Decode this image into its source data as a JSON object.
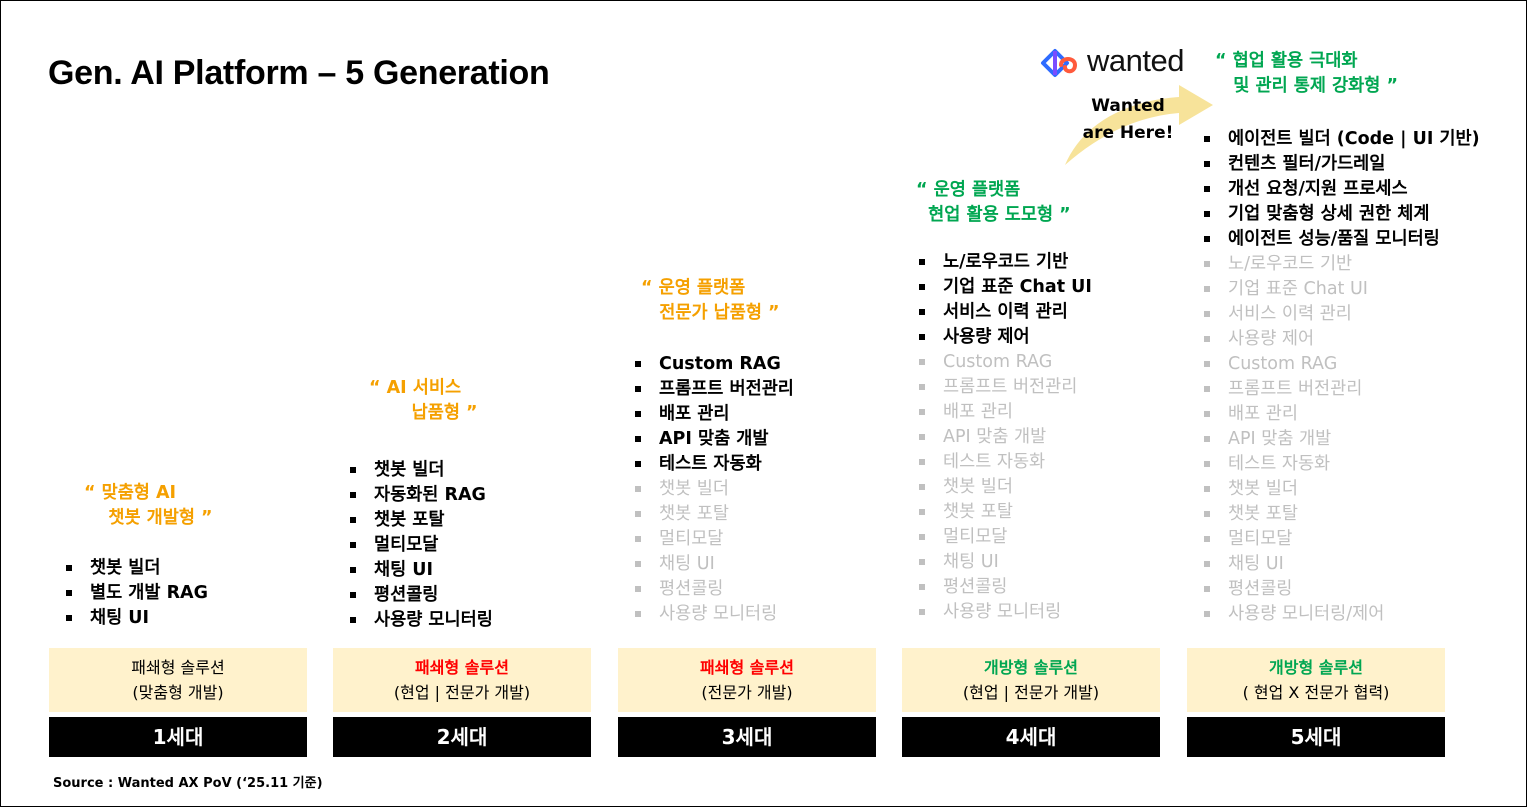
{
  "title": "Gen. AI Platform – 5 Generation",
  "logo": {
    "text": "wanted",
    "icon": "wanted-logo-icon"
  },
  "callout": {
    "line1": "Wanted",
    "line2": "are Here!"
  },
  "colors": {
    "heading_orange": "#f5a000",
    "heading_green": "#00a651",
    "solution_red": "#ff0000",
    "solution_bg": "#fff2cc",
    "inactive_text": "#c0c0c0",
    "arrow_fill": "#f7e39a",
    "generation_bar": "#000000"
  },
  "generations": [
    {
      "heading": "“ 맞춤형 AI\n    챗봇 개발형 ”",
      "items": [
        {
          "text": "챗봇 빌더",
          "active": true
        },
        {
          "text": "별도 개발 RAG",
          "active": true
        },
        {
          "text": "채팅 UI",
          "active": true
        }
      ],
      "solution_title": "패쇄형 솔루션",
      "solution_sub": "(맞춤형 개발)",
      "label": "1세대"
    },
    {
      "heading": "“ AI 서비스\n       납품형 ”",
      "items": [
        {
          "text": "챗봇 빌더",
          "active": true
        },
        {
          "text": "자동화된 RAG",
          "active": true
        },
        {
          "text": "챗봇 포탈",
          "active": true
        },
        {
          "text": "멀티모달",
          "active": true
        },
        {
          "text": "채팅 UI",
          "active": true
        },
        {
          "text": "평션콜링",
          "active": true
        },
        {
          "text": "사용량 모니터링",
          "active": true
        }
      ],
      "solution_title": "패쇄형 솔루션",
      "solution_sub": "(현업 | 전문가 개발)",
      "label": "2세대"
    },
    {
      "heading": "“ 운영 플랫폼\n   전문가 납품형 ”",
      "items": [
        {
          "text": "Custom RAG",
          "active": true
        },
        {
          "text": "프롬프트 버전관리",
          "active": true
        },
        {
          "text": "배포 관리",
          "active": true
        },
        {
          "text": "API 맞춤 개발",
          "active": true
        },
        {
          "text": "테스트 자동화",
          "active": true
        },
        {
          "text": "챗봇 빌더",
          "active": false
        },
        {
          "text": "챗봇 포탈",
          "active": false
        },
        {
          "text": "멀티모달",
          "active": false
        },
        {
          "text": "채팅 UI",
          "active": false
        },
        {
          "text": "평션콜링",
          "active": false
        },
        {
          "text": "사용량 모니터링",
          "active": false
        }
      ],
      "solution_title": "패쇄형 솔루션",
      "solution_sub": "(전문가 개발)",
      "label": "3세대"
    },
    {
      "heading": "“ 운영 플랫폼\n  현업 활용 도모형 ”",
      "items": [
        {
          "text": "노/로우코드 기반",
          "active": true
        },
        {
          "text": "기업 표준 Chat UI",
          "active": true
        },
        {
          "text": "서비스 이력 관리",
          "active": true
        },
        {
          "text": "사용량 제어",
          "active": true
        },
        {
          "text": "Custom RAG",
          "active": false
        },
        {
          "text": "프롬프트 버전관리",
          "active": false
        },
        {
          "text": "배포 관리",
          "active": false
        },
        {
          "text": "API 맞춤 개발",
          "active": false
        },
        {
          "text": "테스트 자동화",
          "active": false
        },
        {
          "text": "챗봇 빌더",
          "active": false
        },
        {
          "text": "챗봇 포탈",
          "active": false
        },
        {
          "text": "멀티모달",
          "active": false
        },
        {
          "text": "채팅 UI",
          "active": false
        },
        {
          "text": "평션콜링",
          "active": false
        },
        {
          "text": "사용량 모니터링",
          "active": false
        }
      ],
      "solution_title": "개방형 솔루션",
      "solution_sub": "(현업 | 전문가 개발)",
      "label": "4세대"
    },
    {
      "heading": "“ 협업 활용 극대화\n   및 관리 통제 강화형 ”",
      "items": [
        {
          "text": "에이전트 빌더 (Code | UI 기반)",
          "active": true
        },
        {
          "text": "컨텐츠 필터/가드레일",
          "active": true
        },
        {
          "text": "개선 요청/지원 프로세스",
          "active": true
        },
        {
          "text": "기업 맞춤형 상세 권한 체계",
          "active": true
        },
        {
          "text": "에이전트 성능/품질 모니터링",
          "active": true
        },
        {
          "text": "노/로우코드 기반",
          "active": false
        },
        {
          "text": "기업 표준 Chat UI",
          "active": false
        },
        {
          "text": "서비스 이력 관리",
          "active": false
        },
        {
          "text": "사용량 제어",
          "active": false
        },
        {
          "text": "Custom RAG",
          "active": false
        },
        {
          "text": "프롬프트 버전관리",
          "active": false
        },
        {
          "text": "배포 관리",
          "active": false
        },
        {
          "text": "API 맞춤 개발",
          "active": false
        },
        {
          "text": "테스트 자동화",
          "active": false
        },
        {
          "text": "챗봇 빌더",
          "active": false
        },
        {
          "text": "챗봇 포탈",
          "active": false
        },
        {
          "text": "멀티모달",
          "active": false
        },
        {
          "text": "채팅 UI",
          "active": false
        },
        {
          "text": "평션콜링",
          "active": false
        },
        {
          "text": "사용량 모니터링/제어",
          "active": false
        }
      ],
      "solution_title": "개방형 솔루션",
      "solution_sub": "( 현업 X 전문가 협력)",
      "label": "5세대"
    }
  ],
  "source": "Source : Wanted AX PoV (‘25.11 기준)"
}
